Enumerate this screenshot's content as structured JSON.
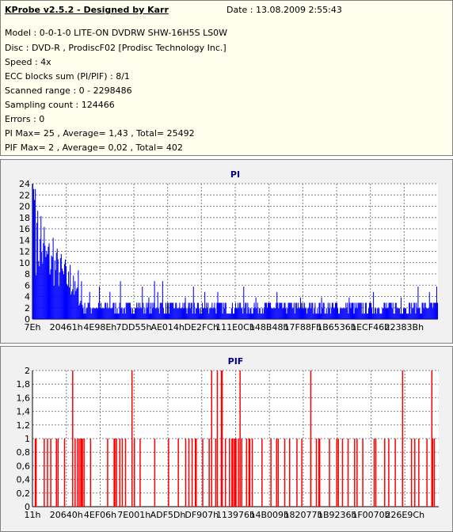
{
  "header": {
    "title": "KProbe v2.5.2 - Designed by Karr",
    "date": "Date : 13.08.2009 2:55:43",
    "lines": [
      "Model : 0-0-1-0 LITE-ON DVDRW SHW-16H5S  LS0W",
      "Disc : DVD-R , ProdiscF02 [Prodisc Technology Inc.]",
      "Speed : 4x",
      "ECC blocks sum (PI/PIF) : 8/1",
      "Scanned range : 0 - 2298486",
      "Sampling count : 124466",
      "Errors : 0",
      "PI Max= 25 , Average= 1,43 , Total= 25492",
      "PIF Max= 2 , Average= 0,02 , Total= 402"
    ]
  },
  "colors": {
    "pi": "#0000ff",
    "pif": "#ff0000",
    "grid": "#808080",
    "plot_bg": "#ffffff",
    "panel_bg": "#f1f1f1",
    "info_bg": "#ffffee"
  },
  "chart_data": [
    {
      "type": "bar",
      "title": "PI",
      "xlabel": "",
      "ylabel": "",
      "x_tick_labels": [
        "7Eh",
        "20461h",
        "4E98Eh",
        "7DD55h",
        "AE014h",
        "DE2FCh",
        "111E0Ch",
        "148B48h",
        "17F88Fh",
        "1B6536h",
        "1ECF46h",
        "22383Bh"
      ],
      "ylim": [
        0,
        25
      ],
      "y_ticks": [
        "0",
        "2",
        "4",
        "6",
        "8",
        "10",
        "12",
        "14",
        "16",
        "18",
        "20",
        "22",
        "24"
      ],
      "grid": true,
      "sample_count": 500,
      "series": [
        {
          "profile": [
            [
              0,
              25
            ],
            [
              4,
              18
            ],
            [
              15,
              15
            ],
            [
              30,
              12
            ],
            [
              45,
              9
            ],
            [
              55,
              6
            ],
            [
              62,
              3
            ],
            [
              100,
              3
            ],
            [
              500,
              3
            ]
          ],
          "spikes": [
            [
              0,
              25
            ],
            [
              1,
              24
            ],
            [
              2,
              22
            ],
            [
              3,
              24
            ],
            [
              6,
              20
            ],
            [
              10,
              19
            ],
            [
              14,
              17
            ],
            [
              20,
              14
            ],
            [
              25,
              15
            ],
            [
              30,
              13
            ],
            [
              35,
              12
            ],
            [
              40,
              11
            ],
            [
              46,
              10
            ],
            [
              50,
              8
            ],
            [
              56,
              9
            ],
            [
              60,
              7
            ],
            [
              70,
              5
            ],
            [
              82,
              6
            ],
            [
              95,
              5
            ],
            [
              108,
              7
            ],
            [
              135,
              6
            ],
            [
              143,
              4
            ],
            [
              150,
              7
            ],
            [
              154,
              5
            ],
            [
              160,
              7
            ],
            [
              188,
              4
            ],
            [
              198,
              6
            ],
            [
              212,
              5
            ],
            [
              228,
              5
            ],
            [
              260,
              6
            ],
            [
              275,
              4
            ],
            [
              301,
              5
            ],
            [
              330,
              4
            ],
            [
              356,
              4
            ],
            [
              390,
              4
            ],
            [
              420,
              5
            ],
            [
              454,
              4
            ],
            [
              475,
              6
            ],
            [
              489,
              5
            ],
            [
              498,
              6
            ]
          ]
        }
      ]
    },
    {
      "type": "bar",
      "title": "PIF",
      "xlabel": "",
      "ylabel": "",
      "x_tick_labels": [
        "11h",
        "20640h",
        "4EF06h",
        "7E001h",
        "ADF5Dh",
        "DF907h",
        "113976h",
        "14B009h",
        "182077h",
        "1B9236h",
        "1F0070h",
        "226E9Ch"
      ],
      "ylim": [
        0,
        2
      ],
      "y_ticks": [
        "0",
        "0,2",
        "0,4",
        "0,6",
        "0,8",
        "1",
        "1,2",
        "1,4",
        "1,6",
        "1,8",
        "2"
      ],
      "grid": true,
      "sample_count": 500,
      "series": [
        {
          "ones": [
            3,
            4,
            14,
            18,
            22,
            29,
            31,
            39,
            52,
            55,
            57,
            59,
            60,
            61,
            63,
            71,
            92,
            100,
            101,
            103,
            107,
            110,
            114,
            125,
            132,
            150,
            167,
            179,
            188,
            192,
            196,
            200,
            201,
            209,
            217,
            225,
            232,
            237,
            242,
            245,
            246,
            248,
            249,
            250,
            253,
            257,
            263,
            266,
            267,
            270,
            282,
            293,
            300,
            302,
            310,
            316,
            325,
            331,
            342,
            349,
            352,
            353,
            365,
            374,
            376,
            381,
            388,
            396,
            399,
            406,
            420,
            422,
            433,
            438,
            446,
            455,
            466,
            470,
            475,
            485,
            491,
            492,
            494
          ],
          "twos": [
            49,
            122,
            220,
            227,
            232,
            233,
            255,
            342,
            455,
            491
          ]
        }
      ]
    }
  ]
}
